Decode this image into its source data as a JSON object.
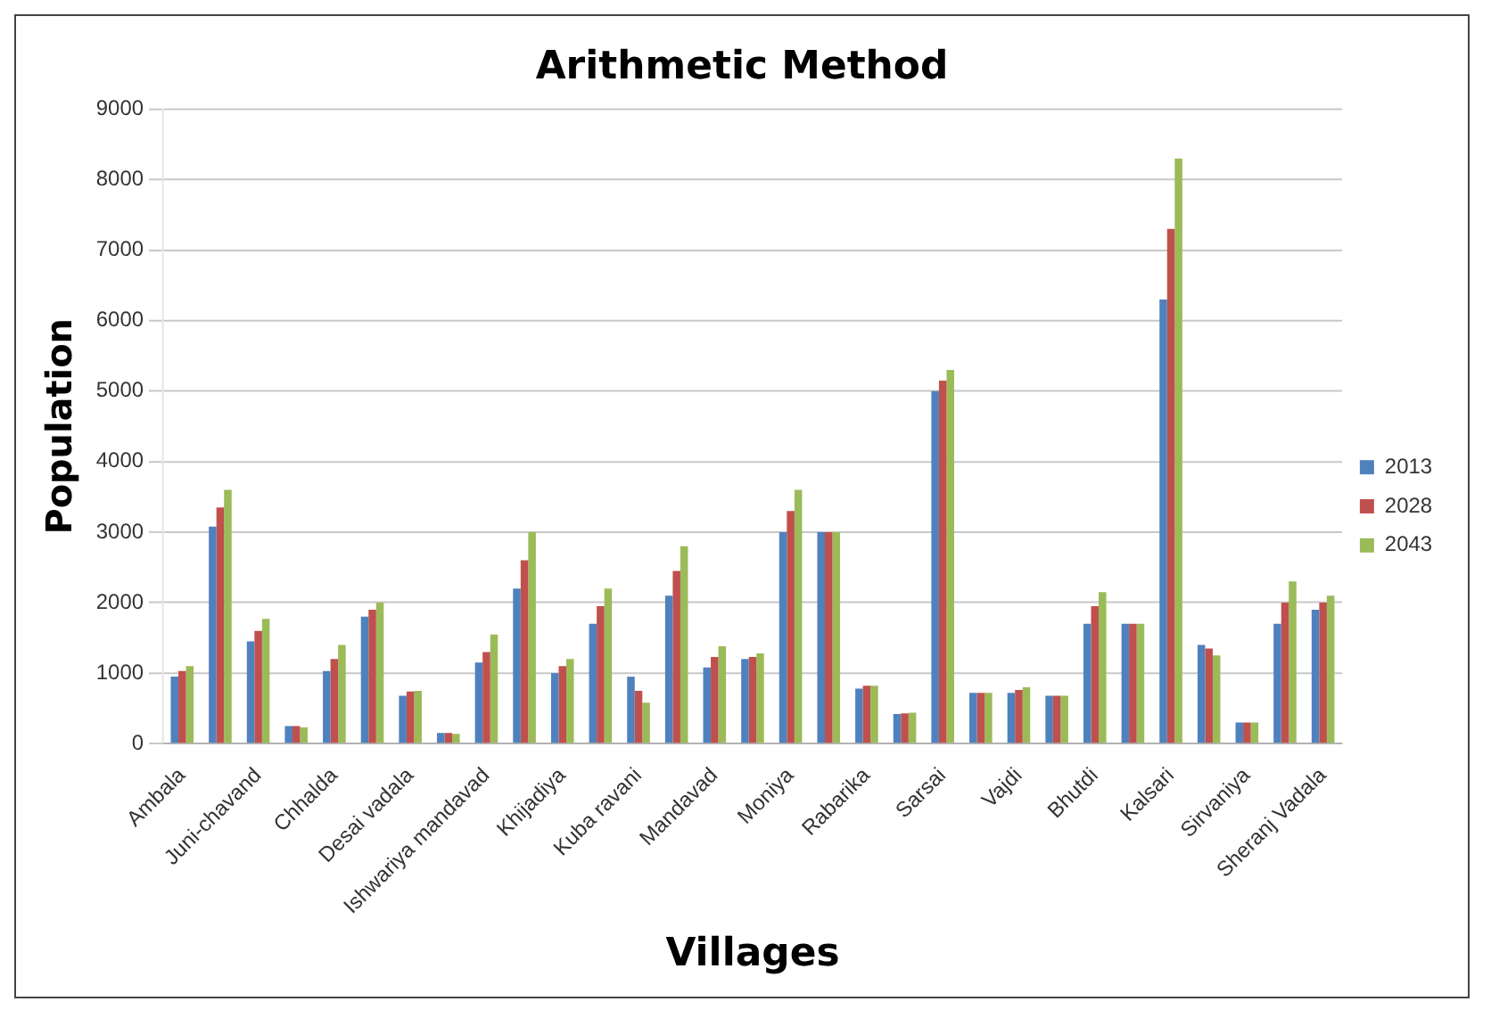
{
  "chart_data": {
    "type": "bar",
    "title": "Arithmetic Method",
    "xlabel": "Villages",
    "ylabel": "Population",
    "categories": [
      "Ambala",
      null,
      "Juni-chavand",
      null,
      "Chhalda",
      null,
      "Desai vadala",
      null,
      "Ishwariya mandavad",
      null,
      "Khijadiya",
      null,
      "Kuba ravani",
      null,
      "Mandavad",
      null,
      "Moniya",
      null,
      "Rabarika",
      null,
      "Sarsai",
      null,
      "Vajdi",
      null,
      "Bhutdi",
      null,
      "Kalsari",
      null,
      "Sirvaniya",
      null,
      "Sheranj Vadala"
    ],
    "series": [
      {
        "name": "2013",
        "color": "#4f81bd",
        "values": [
          950,
          3080,
          1450,
          250,
          1030,
          1800,
          680,
          150,
          1150,
          2200,
          1000,
          1700,
          950,
          2100,
          1080,
          1200,
          3000,
          3000,
          780,
          420,
          5000,
          720,
          720,
          680,
          1700,
          1700,
          6300,
          1400,
          300,
          1700,
          1900
        ]
      },
      {
        "name": "2028",
        "color": "#c0504d",
        "values": [
          1030,
          3350,
          1600,
          250,
          1200,
          1900,
          740,
          150,
          1300,
          2600,
          1100,
          1950,
          750,
          2450,
          1230,
          1230,
          3300,
          3000,
          820,
          430,
          5150,
          720,
          760,
          680,
          1950,
          1700,
          7300,
          1350,
          300,
          2000,
          2000
        ]
      },
      {
        "name": "2043",
        "color": "#9bbb59",
        "values": [
          1100,
          3600,
          1770,
          230,
          1400,
          2000,
          750,
          140,
          1550,
          3000,
          1200,
          2200,
          580,
          2800,
          1380,
          1280,
          3600,
          3000,
          820,
          440,
          5300,
          720,
          800,
          680,
          2150,
          1700,
          8300,
          1250,
          300,
          2300,
          2100
        ]
      }
    ],
    "ylim": [
      0,
      9000
    ],
    "yticks": [
      0,
      1000,
      2000,
      3000,
      4000,
      5000,
      6000,
      7000,
      8000,
      9000
    ],
    "grid": "y",
    "legend": "right"
  }
}
